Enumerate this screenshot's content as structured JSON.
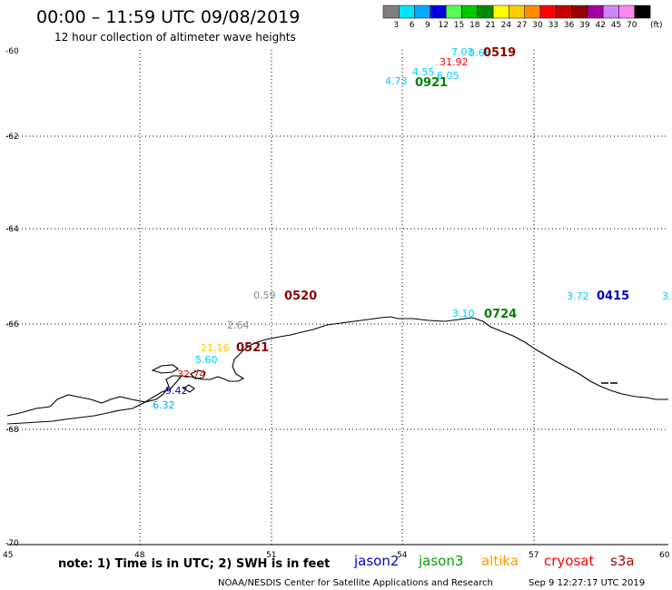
{
  "title": "00:00 – 11:59 UTC 09/08/2019",
  "subtitle": "12 hour collection of altimeter wave heights",
  "colorbar": {
    "unit": "(ft)",
    "colors": [
      "#7f7f7f",
      "#00e5ff",
      "#00aaff",
      "#0000e0",
      "#55ff55",
      "#00c800",
      "#008c00",
      "#ffff00",
      "#ffcc00",
      "#ff8c00",
      "#ff0000",
      "#c80000",
      "#960000",
      "#a000a0",
      "#cc88ff",
      "#ff88ee",
      "#000000"
    ],
    "labels": [
      "3",
      "6",
      "9",
      "12",
      "15",
      "18",
      "21",
      "24",
      "27",
      "30",
      "33",
      "36",
      "39",
      "42",
      "45",
      "70"
    ]
  },
  "axes": {
    "lon_labels": [
      "45",
      "48",
      "51",
      "54",
      "57",
      "60"
    ],
    "lat_labels": [
      "-60",
      "-62",
      "-64",
      "-66",
      "-68",
      "-70"
    ]
  },
  "observations": [
    {
      "text": "7.03",
      "color": "#00ccff"
    },
    {
      "text": "0.66",
      "color": "#00ccff"
    },
    {
      "text": "31.92",
      "color": "#ff0000"
    },
    {
      "text": "4.55",
      "color": "#00ccff"
    },
    {
      "text": "6.05",
      "color": "#00ccff"
    },
    {
      "text": "4.73",
      "color": "#00ccff"
    },
    {
      "text": "0.59",
      "color": "#888888"
    },
    {
      "text": "3.10",
      "color": "#00ccff"
    },
    {
      "text": "3.72",
      "color": "#00ccff"
    },
    {
      "text": "3.",
      "color": "#00ccff"
    },
    {
      "text": "2.64",
      "color": "#888888"
    },
    {
      "text": "21.16",
      "color": "#ffcc00"
    },
    {
      "text": "5.60",
      "color": "#00ccff"
    },
    {
      "text": "32.74",
      "color": "#ff0000"
    },
    {
      "text": "9.42",
      "color": "#0000e0"
    },
    {
      "text": "6.32",
      "color": "#00aaff"
    }
  ],
  "times": [
    {
      "text": "0519",
      "color": "#8b0000"
    },
    {
      "text": "0921",
      "color": "#008000"
    },
    {
      "text": "0520",
      "color": "#8b0000"
    },
    {
      "text": "0724",
      "color": "#008000"
    },
    {
      "text": "0415",
      "color": "#0000c0"
    },
    {
      "text": "0521",
      "color": "#8b0000"
    }
  ],
  "note": "note: 1) Time is in UTC; 2) SWH is in feet",
  "satellites": [
    {
      "name": "jason2",
      "color": "#0000cc"
    },
    {
      "name": "jason3",
      "color": "#00a000"
    },
    {
      "name": "altika",
      "color": "#ff9900"
    },
    {
      "name": "cryosat",
      "color": "#ff0000"
    },
    {
      "name": "s3a",
      "color": "#b00000"
    }
  ],
  "footer": {
    "credit": "NOAA/NESDIS Center for Satellite Applications and Research",
    "timestamp": "Sep  9 12:27:17 UTC 2019"
  }
}
